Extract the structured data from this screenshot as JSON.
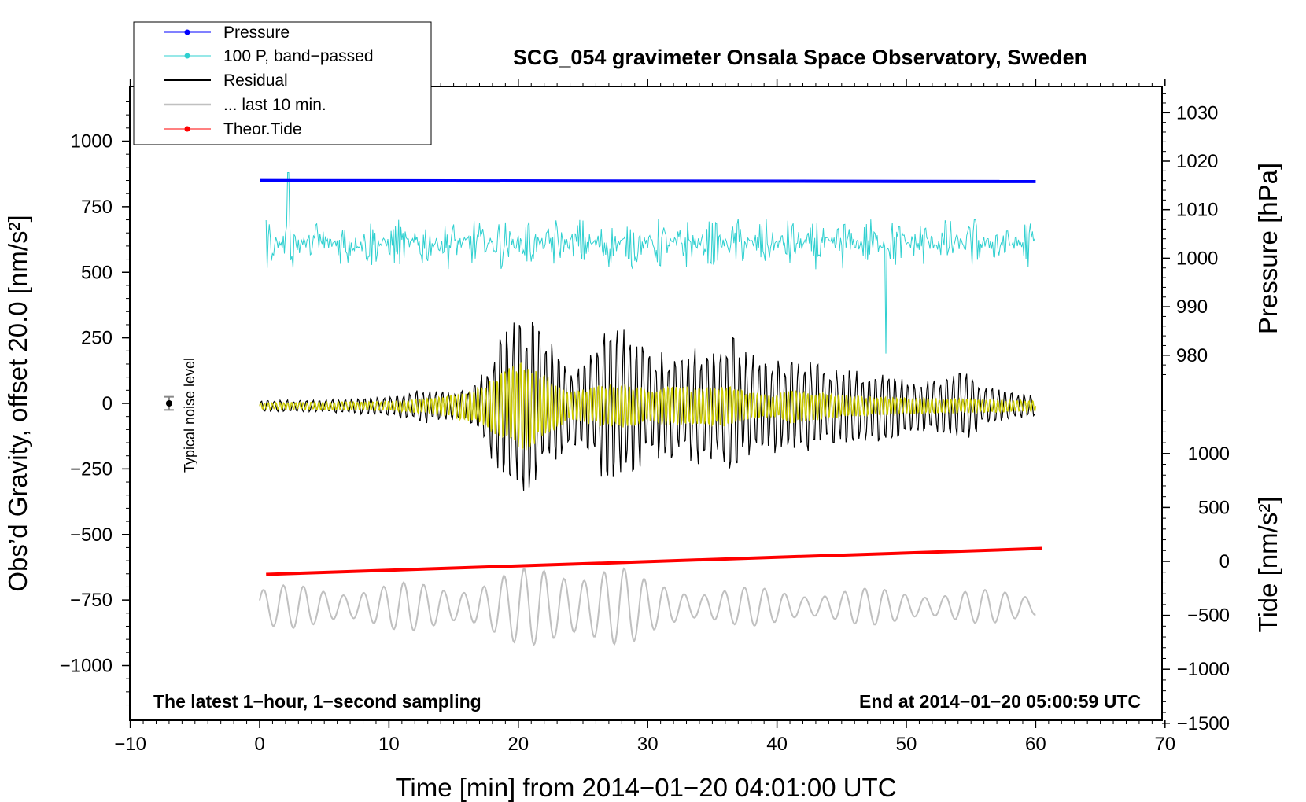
{
  "chart_data": {
    "type": "line",
    "title": "SCG_054 gravimeter Onsala Space Observatory, Sweden",
    "xlabel": "Time [min] from 2014−01−20 04:01:00 UTC",
    "ylabel": "Obs’d Gravity, offset 20.0 [nm/s²]",
    "y2label_pressure": "Pressure [hPa]",
    "y2label_tide": "Tide [nm/s²]",
    "xlim": [
      -10,
      70
    ],
    "ylim": [
      -1200,
      1200
    ],
    "x_ticks": [
      "−10",
      "0",
      "10",
      "20",
      "30",
      "40",
      "50",
      "60",
      "70"
    ],
    "y_ticks": [
      "1000",
      "750",
      "500",
      "250",
      "0",
      "−250",
      "−500",
      "−750",
      "−1000"
    ],
    "pressure_ticks": [
      "1030",
      "1020",
      "1010",
      "1000",
      "990",
      "980"
    ],
    "tide_ticks": [
      "1000",
      "500",
      "0",
      "−500",
      "−1000",
      "−1500"
    ],
    "pressure_axis_range": [
      975,
      1035
    ],
    "tide_axis_range": [
      -1500,
      1500
    ],
    "footer_left": "The latest 1−hour, 1−second sampling",
    "footer_right": "End at 2014−01−20 05:00:59 UTC",
    "noise_label": "Typical noise level",
    "noise_marker": {
      "x": -7,
      "y": 0,
      "err": 25
    },
    "legend": [
      {
        "label": "Pressure",
        "color": "#0000ff",
        "marker": true
      },
      {
        "label": "100 P, band−passed",
        "color": "#2fd0d0",
        "marker": true
      },
      {
        "label": "Residual",
        "color": "#000000",
        "marker": false
      },
      {
        "label": "... last 10 min.",
        "color": "#c0c0c0",
        "marker": false
      },
      {
        "label": "Theor.Tide",
        "color": "#ff0000",
        "marker": true
      }
    ],
    "series": [
      {
        "name": "Pressure",
        "axis": "pressure",
        "color": "#0000ff",
        "x_range": [
          0,
          60
        ],
        "level_hPa": 1016,
        "end_level_hPa": 1015.8
      },
      {
        "name": "100 P, band−passed",
        "axis": "gravity",
        "color": "#2fd0d0",
        "x_range": [
          0,
          60
        ],
        "center": 610,
        "amplitude": 100,
        "spike_minutes": [
          2.2,
          48.4
        ]
      },
      {
        "name": "Residual",
        "axis": "gravity",
        "color": "#000000",
        "x_range": [
          0,
          60
        ],
        "envelope": [
          [
            0,
            25
          ],
          [
            5,
            30
          ],
          [
            10,
            40
          ],
          [
            13,
            80
          ],
          [
            15,
            55
          ],
          [
            17,
            120
          ],
          [
            18,
            250
          ],
          [
            19.5,
            380
          ],
          [
            21,
            400
          ],
          [
            22,
            330
          ],
          [
            24,
            180
          ],
          [
            25,
            200
          ],
          [
            26,
            300
          ],
          [
            27.5,
            350
          ],
          [
            28.5,
            330
          ],
          [
            30,
            260
          ],
          [
            31.5,
            240
          ],
          [
            32.5,
            270
          ],
          [
            34,
            260
          ],
          [
            35.5,
            240
          ],
          [
            36.5,
            310
          ],
          [
            37.5,
            260
          ],
          [
            39,
            190
          ],
          [
            41,
            240
          ],
          [
            42,
            220
          ],
          [
            43.5,
            180
          ],
          [
            45,
            170
          ],
          [
            46.5,
            160
          ],
          [
            48.5,
            160
          ],
          [
            50,
            110
          ],
          [
            52,
            110
          ],
          [
            53,
            150
          ],
          [
            54.5,
            160
          ],
          [
            56,
            90
          ],
          [
            58,
            60
          ],
          [
            60,
            55
          ]
        ]
      },
      {
        "name": "Residual (yellow band)",
        "axis": "gravity",
        "color": "#cccc00",
        "x_range": [
          0,
          60
        ],
        "envelope": [
          [
            0,
            15
          ],
          [
            10,
            20
          ],
          [
            14,
            40
          ],
          [
            17,
            80
          ],
          [
            19,
            160
          ],
          [
            20.5,
            200
          ],
          [
            22,
            140
          ],
          [
            24,
            60
          ],
          [
            26,
            90
          ],
          [
            28,
            100
          ],
          [
            30,
            70
          ],
          [
            32,
            90
          ],
          [
            34,
            80
          ],
          [
            36,
            90
          ],
          [
            38,
            60
          ],
          [
            40,
            50
          ],
          [
            41,
            80
          ],
          [
            43,
            60
          ],
          [
            45,
            50
          ],
          [
            48,
            40
          ],
          [
            55,
            30
          ],
          [
            60,
            25
          ]
        ]
      },
      {
        "name": "... last 10 min.",
        "axis": "gravity",
        "color": "#c0c0c0",
        "x_range": [
          0,
          60
        ],
        "center": -775,
        "note": "min/max over the panel",
        "envelope": [
          [
            0,
            80
          ],
          [
            10,
            90
          ],
          [
            15,
            100
          ],
          [
            20,
            140
          ],
          [
            24,
            190
          ],
          [
            26,
            200
          ],
          [
            28,
            160
          ],
          [
            30,
            100
          ],
          [
            35,
            80
          ],
          [
            40,
            70
          ],
          [
            50,
            70
          ],
          [
            60,
            60
          ]
        ]
      },
      {
        "name": "Theor.Tide",
        "axis": "tide",
        "color": "#ff0000",
        "x": [
          0.5,
          60.5
        ],
        "y": [
          -120,
          120
        ]
      }
    ]
  }
}
